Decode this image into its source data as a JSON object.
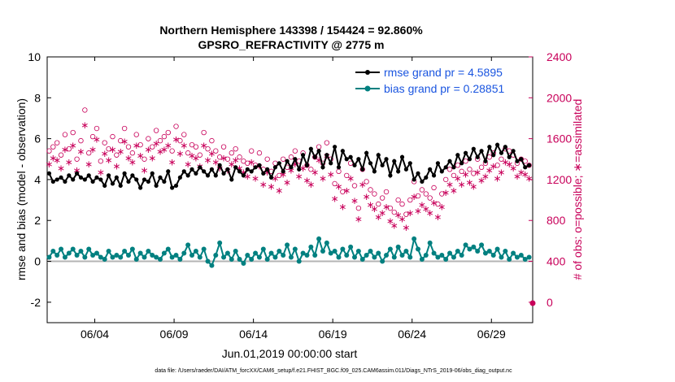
{
  "chart_data": {
    "type": "line",
    "title_line1": "Northern Hemisphere 143398 / 154424 = 92.860%",
    "title_line2": "GPSRO_REFRACTIVITY @ 2775 m",
    "xlabel": "Jun.01,2019 00:00:00 start",
    "ylabel": "rmse and bias (model - observation)",
    "ylabel_right": "# of obs: o=possible; ∗=assimilated",
    "xlim": [
      0,
      30.6
    ],
    "ylim": [
      -3,
      10
    ],
    "ylim_right": [
      -200,
      2400
    ],
    "x_ticks": [
      {
        "value": 3,
        "label": "06/04"
      },
      {
        "value": 8,
        "label": "06/09"
      },
      {
        "value": 13,
        "label": "06/14"
      },
      {
        "value": 18,
        "label": "06/19"
      },
      {
        "value": 23,
        "label": "06/24"
      },
      {
        "value": 28,
        "label": "06/29"
      }
    ],
    "y_ticks": [
      "-2",
      "0",
      "2",
      "4",
      "6",
      "8",
      "10"
    ],
    "y_ticks_right": [
      "0",
      "400",
      "800",
      "1200",
      "1600",
      "2000",
      "2400"
    ],
    "legend": [
      {
        "label": "rmse grand pr = 4.5895",
        "color": "#000000"
      },
      {
        "label": "bias grand pr = 0.28851",
        "color": "#008080"
      }
    ],
    "footnote": "data file: /Users/raeder/DAI/ATM_forcXX/CAM6_setup/f.e21.FHIST_BGC.f09_025.CAM6assim.011/Diags_NTrS_2019-06/obs_diag_output.nc",
    "colors": {
      "rmse": "#000000",
      "bias": "#008080",
      "obs": "#c8005a",
      "zero_line": "#b4b4b4",
      "legend_text": "#1a55e0"
    },
    "series_rmse": {
      "name": "rmse",
      "x": [
        0.125,
        0.375,
        0.625,
        0.875,
        1.125,
        1.375,
        1.625,
        1.875,
        2.125,
        2.375,
        2.625,
        2.875,
        3.125,
        3.375,
        3.625,
        3.875,
        4.125,
        4.375,
        4.625,
        4.875,
        5.125,
        5.375,
        5.625,
        5.875,
        6.125,
        6.375,
        6.625,
        6.875,
        7.125,
        7.375,
        7.625,
        7.875,
        8.125,
        8.375,
        8.625,
        8.875,
        9.125,
        9.375,
        9.625,
        9.875,
        10.125,
        10.375,
        10.625,
        10.875,
        11.125,
        11.375,
        11.625,
        11.875,
        12.125,
        12.375,
        12.625,
        12.875,
        13.125,
        13.375,
        13.625,
        13.875,
        14.125,
        14.375,
        14.625,
        14.875,
        15.125,
        15.375,
        15.625,
        15.875,
        16.125,
        16.375,
        16.625,
        16.875,
        17.125,
        17.375,
        17.625,
        17.875,
        18.125,
        18.375,
        18.625,
        18.875,
        19.125,
        19.375,
        19.625,
        19.875,
        20.125,
        20.375,
        20.625,
        20.875,
        21.125,
        21.375,
        21.625,
        21.875,
        22.125,
        22.375,
        22.625,
        22.875,
        23.125,
        23.375,
        23.625,
        23.875,
        24.125,
        24.375,
        24.625,
        24.875,
        25.125,
        25.375,
        25.625,
        25.875,
        26.125,
        26.375,
        26.625,
        26.875,
        27.125,
        27.375,
        27.625,
        27.875,
        28.125,
        28.375,
        28.625,
        28.875,
        29.125,
        29.375,
        29.625,
        29.875,
        30.125,
        30.375
      ],
      "values": [
        4.3,
        3.9,
        4.0,
        4.1,
        3.9,
        4.2,
        4.0,
        4.3,
        4.1,
        4.0,
        4.2,
        3.9,
        4.1,
        4.0,
        3.7,
        4.2,
        3.8,
        4.1,
        3.7,
        4.3,
        3.9,
        4.2,
        4.0,
        3.6,
        4.0,
        3.9,
        4.3,
        3.7,
        4.1,
        3.9,
        4.4,
        3.6,
        3.7,
        4.1,
        4.4,
        4.2,
        4.5,
        4.3,
        4.6,
        4.4,
        4.2,
        4.5,
        4.2,
        4.7,
        4.3,
        4.5,
        4.0,
        4.6,
        4.4,
        4.2,
        4.5,
        4.4,
        4.6,
        4.7,
        4.3,
        4.5,
        4.1,
        4.6,
        4.8,
        4.4,
        4.9,
        4.6,
        5.0,
        4.5,
        5.2,
        4.7,
        5.5,
        5.1,
        5.4,
        4.6,
        5.2,
        4.8,
        5.6,
        4.6,
        5.4,
        5.0,
        5.1,
        4.7,
        5.0,
        4.5,
        5.3,
        4.8,
        4.4,
        5.2,
        4.7,
        5.0,
        4.2,
        4.9,
        4.4,
        5.1,
        4.5,
        4.8,
        4.0,
        4.3,
        3.9,
        4.1,
        4.5,
        4.2,
        4.8,
        4.4,
        4.6,
        4.9,
        4.6,
        5.2,
        4.8,
        5.3,
        5.0,
        5.5,
        5.1,
        5.4,
        4.9,
        5.6,
        5.2,
        5.7,
        5.3,
        5.6,
        5.1,
        5.4,
        4.9,
        5.0,
        4.6,
        4.7
      ]
    },
    "series_bias": {
      "name": "bias",
      "x": [
        0.125,
        0.375,
        0.625,
        0.875,
        1.125,
        1.375,
        1.625,
        1.875,
        2.125,
        2.375,
        2.625,
        2.875,
        3.125,
        3.375,
        3.625,
        3.875,
        4.125,
        4.375,
        4.625,
        4.875,
        5.125,
        5.375,
        5.625,
        5.875,
        6.125,
        6.375,
        6.625,
        6.875,
        7.125,
        7.375,
        7.625,
        7.875,
        8.125,
        8.375,
        8.625,
        8.875,
        9.125,
        9.375,
        9.625,
        9.875,
        10.125,
        10.375,
        10.625,
        10.875,
        11.125,
        11.375,
        11.625,
        11.875,
        12.125,
        12.375,
        12.625,
        12.875,
        13.125,
        13.375,
        13.625,
        13.875,
        14.125,
        14.375,
        14.625,
        14.875,
        15.125,
        15.375,
        15.625,
        15.875,
        16.125,
        16.375,
        16.625,
        16.875,
        17.125,
        17.375,
        17.625,
        17.875,
        18.125,
        18.375,
        18.625,
        18.875,
        19.125,
        19.375,
        19.625,
        19.875,
        20.125,
        20.375,
        20.625,
        20.875,
        21.125,
        21.375,
        21.625,
        21.875,
        22.125,
        22.375,
        22.625,
        22.875,
        23.125,
        23.375,
        23.625,
        23.875,
        24.125,
        24.375,
        24.625,
        24.875,
        25.125,
        25.375,
        25.625,
        25.875,
        26.125,
        26.375,
        26.625,
        26.875,
        27.125,
        27.375,
        27.625,
        27.875,
        28.125,
        28.375,
        28.625,
        28.875,
        29.125,
        29.375,
        29.625,
        29.875,
        30.125,
        30.375
      ],
      "values": [
        0.2,
        0.5,
        0.3,
        0.6,
        0.2,
        0.4,
        0.6,
        0.3,
        0.5,
        0.2,
        0.6,
        0.3,
        0.4,
        0.2,
        0.1,
        0.5,
        0.2,
        0.3,
        0.2,
        0.5,
        0.3,
        0.6,
        0.1,
        0.4,
        0.2,
        0.5,
        0.3,
        0.2,
        0.1,
        0.4,
        0.6,
        0.2,
        0.3,
        0.1,
        0.4,
        0.8,
        0.3,
        0.5,
        0.2,
        0.6,
        0.0,
        -0.2,
        0.3,
        0.9,
        0.2,
        0.4,
        0.1,
        0.5,
        0.1,
        -0.1,
        0.3,
        0.1,
        0.4,
        0.2,
        0.6,
        0.1,
        0.4,
        0.2,
        0.5,
        0.3,
        0.8,
        0.2,
        0.6,
        0.0,
        0.4,
        0.3,
        0.7,
        0.3,
        1.1,
        0.5,
        0.9,
        0.4,
        0.5,
        0.2,
        0.6,
        0.3,
        0.7,
        0.2,
        0.5,
        0.1,
        0.3,
        0.5,
        0.2,
        0.4,
        0.0,
        0.3,
        0.6,
        0.2,
        0.7,
        0.3,
        0.5,
        0.2,
        1.1,
        0.6,
        0.1,
        0.3,
        0.9,
        0.4,
        0.2,
        0.3,
        0.1,
        0.4,
        0.2,
        0.5,
        0.3,
        0.8,
        0.6,
        0.7,
        0.5,
        0.8,
        0.4,
        0.5,
        0.3,
        0.6,
        0.2,
        0.5,
        0.1,
        0.4,
        0.2,
        0.3,
        0.1,
        0.2
      ]
    },
    "obs_possible": {
      "name": "possible",
      "x": [
        0.125,
        0.375,
        0.625,
        0.875,
        1.125,
        1.375,
        1.625,
        1.875,
        2.125,
        2.375,
        2.625,
        2.875,
        3.125,
        3.375,
        3.625,
        3.875,
        4.125,
        4.375,
        4.625,
        4.875,
        5.125,
        5.375,
        5.625,
        5.875,
        6.125,
        6.375,
        6.625,
        6.875,
        7.125,
        7.375,
        7.625,
        7.875,
        8.125,
        8.375,
        8.625,
        8.875,
        9.125,
        9.375,
        9.625,
        9.875,
        10.125,
        10.375,
        10.625,
        10.875,
        11.125,
        11.375,
        11.625,
        11.875,
        12.125,
        12.375,
        12.625,
        12.875,
        13.125,
        13.375,
        13.625,
        13.875,
        14.125,
        14.375,
        14.625,
        14.875,
        15.125,
        15.375,
        15.625,
        15.875,
        16.125,
        16.375,
        16.625,
        16.875,
        17.125,
        17.375,
        17.625,
        17.875,
        18.125,
        18.375,
        18.625,
        18.875,
        19.125,
        19.375,
        19.625,
        19.875,
        20.125,
        20.375,
        20.625,
        20.875,
        21.125,
        21.375,
        21.625,
        21.875,
        22.125,
        22.375,
        22.625,
        22.875,
        23.125,
        23.375,
        23.625,
        23.875,
        24.125,
        24.375,
        24.625,
        24.875,
        25.125,
        25.375,
        25.625,
        25.875,
        26.125,
        26.375,
        26.625,
        26.875,
        27.125,
        27.375,
        27.625,
        27.875,
        28.125,
        28.375,
        28.625,
        28.875,
        29.125,
        29.375,
        29.625,
        29.875,
        30.125,
        30.375
      ],
      "values": [
        1480,
        1520,
        1560,
        1440,
        1640,
        1500,
        1660,
        1400,
        1580,
        1880,
        1460,
        1620,
        1700,
        1380,
        1560,
        1500,
        1620,
        1440,
        1580,
        1700,
        1520,
        1460,
        1640,
        1540,
        1400,
        1600,
        1520,
        1680,
        1580,
        1620,
        1660,
        1480,
        1720,
        1580,
        1640,
        1460,
        1540,
        1520,
        1440,
        1660,
        1500,
        1580,
        1480,
        1420,
        1520,
        1400,
        1460,
        1500,
        1420,
        1380,
        1360,
        1480,
        1340,
        1460,
        1300,
        1400,
        1280,
        1360,
        1240,
        1400,
        1320,
        1420,
        1480,
        1380,
        1460,
        1340,
        1300,
        1420,
        1520,
        1360,
        1560,
        1400,
        1160,
        1280,
        1080,
        1240,
        1360,
        1140,
        920,
        1300,
        1180,
        1100,
        1060,
        960,
        1020,
        1080,
        920,
        880,
        1000,
        960,
        860,
        1000,
        1180,
        1040,
        1100,
        1060,
        1020,
        1120,
        960,
        1060,
        1200,
        1300,
        1240,
        1340,
        1280,
        1380,
        1300,
        1260,
        1400,
        1320,
        1360,
        1420,
        1460,
        1340,
        1400,
        1500,
        1480,
        1440,
        1360,
        1400,
        1380,
        1340
      ]
    },
    "obs_assimilated": {
      "name": "assimilated",
      "x": [
        0.125,
        0.375,
        0.625,
        0.875,
        1.125,
        1.375,
        1.625,
        1.875,
        2.125,
        2.375,
        2.625,
        2.875,
        3.125,
        3.375,
        3.625,
        3.875,
        4.125,
        4.375,
        4.625,
        4.875,
        5.125,
        5.375,
        5.625,
        5.875,
        6.125,
        6.375,
        6.625,
        6.875,
        7.125,
        7.375,
        7.625,
        7.875,
        8.125,
        8.375,
        8.625,
        8.875,
        9.125,
        9.375,
        9.625,
        9.875,
        10.125,
        10.375,
        10.625,
        10.875,
        11.125,
        11.375,
        11.625,
        11.875,
        12.125,
        12.375,
        12.625,
        12.875,
        13.125,
        13.375,
        13.625,
        13.875,
        14.125,
        14.375,
        14.625,
        14.875,
        15.125,
        15.375,
        15.625,
        15.875,
        16.125,
        16.375,
        16.625,
        16.875,
        17.125,
        17.375,
        17.625,
        17.875,
        18.125,
        18.375,
        18.625,
        18.875,
        19.125,
        19.375,
        19.625,
        19.875,
        20.125,
        20.375,
        20.625,
        20.875,
        21.125,
        21.375,
        21.625,
        21.875,
        22.125,
        22.375,
        22.625,
        22.875,
        23.125,
        23.375,
        23.625,
        23.875,
        24.125,
        24.375,
        24.625,
        24.875,
        25.125,
        25.375,
        25.625,
        25.875,
        26.125,
        26.375,
        26.625,
        26.875,
        27.125,
        27.375,
        27.625,
        27.875,
        28.125,
        28.375,
        28.625,
        28.875,
        29.125,
        29.375,
        29.625,
        29.875,
        30.125,
        30.375
      ],
      "values": [
        1360,
        1420,
        1400,
        1320,
        1500,
        1380,
        1540,
        1300,
        1480,
        1740,
        1360,
        1500,
        1600,
        1280,
        1460,
        1400,
        1500,
        1340,
        1480,
        1580,
        1420,
        1380,
        1540,
        1440,
        1300,
        1500,
        1420,
        1560,
        1480,
        1500,
        1540,
        1380,
        1600,
        1460,
        1540,
        1360,
        1440,
        1420,
        1340,
        1540,
        1400,
        1460,
        1380,
        1320,
        1420,
        1300,
        1360,
        1400,
        1320,
        1280,
        1240,
        1380,
        1220,
        1340,
        1160,
        1280,
        1140,
        1220,
        1100,
        1260,
        1180,
        1300,
        1360,
        1240,
        1320,
        1200,
        1160,
        1280,
        1400,
        1220,
        1440,
        1260,
        1020,
        1140,
        940,
        1100,
        1220,
        1000,
        820,
        1160,
        1040,
        960,
        920,
        840,
        880,
        940,
        800,
        760,
        860,
        820,
        740,
        880,
        1040,
        900,
        960,
        920,
        880,
        980,
        840,
        940,
        1080,
        1160,
        1100,
        1220,
        1160,
        1260,
        1180,
        1140,
        1280,
        1200,
        1240,
        1300,
        1340,
        1220,
        1280,
        1380,
        1360,
        1320,
        1240,
        1280,
        1260,
        1220
      ]
    }
  }
}
